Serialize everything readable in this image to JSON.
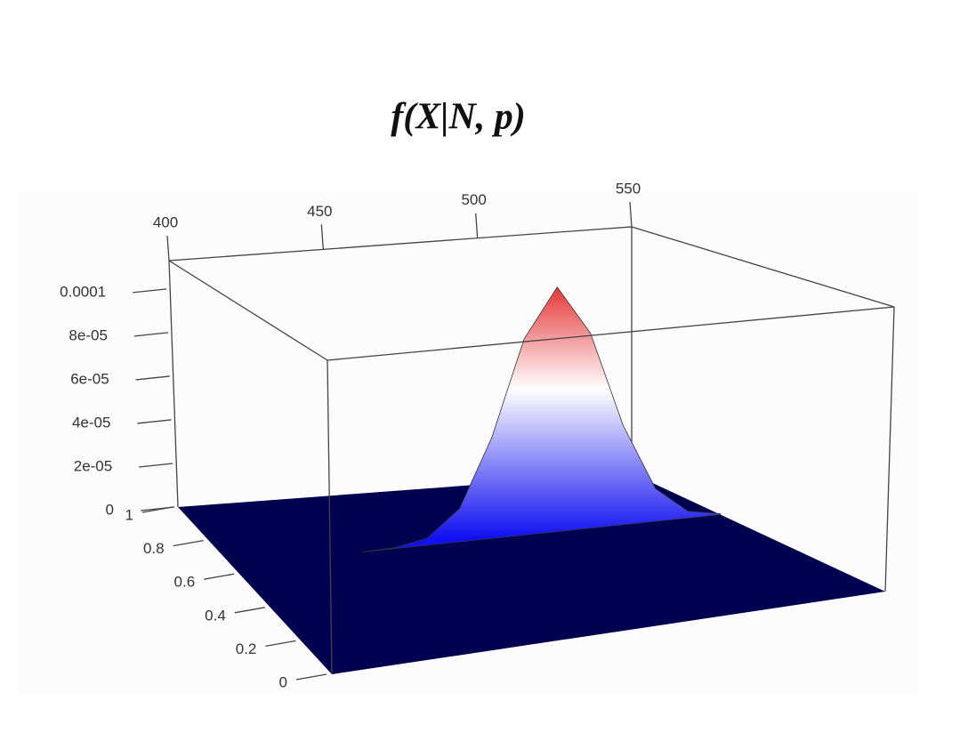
{
  "chart_data": {
    "type": "surface3d",
    "title": "f(X|N, p)",
    "x": [
      440,
      450,
      460,
      470,
      480,
      490,
      500,
      510,
      520,
      530,
      540,
      550
    ],
    "surface_y": 0.65,
    "values": [
      0,
      4e-07,
      3e-06,
      1.42e-05,
      4.3e-05,
      8.4e-05,
      0.000105,
      8.4e-05,
      4.3e-05,
      1.42e-05,
      3e-06,
      4e-07
    ],
    "xlim": [
      400,
      550
    ],
    "xticks": [
      400,
      450,
      500,
      550
    ],
    "ylim": [
      0,
      1
    ],
    "yticks": [
      0,
      0.2,
      0.4,
      0.6,
      0.8,
      1
    ],
    "zlim": [
      0,
      0.000113
    ],
    "zticks": [
      0,
      {
        "value": 2e-05,
        "label": "2e-05"
      },
      {
        "value": 4e-05,
        "label": "4e-05"
      },
      {
        "value": 6e-05,
        "label": "6e-05"
      },
      {
        "value": 8e-05,
        "label": "8e-05"
      },
      0.0001
    ],
    "plane_color": "#000050",
    "colors": [
      "#e01010",
      "#ffffff",
      "#1010f0"
    ]
  }
}
